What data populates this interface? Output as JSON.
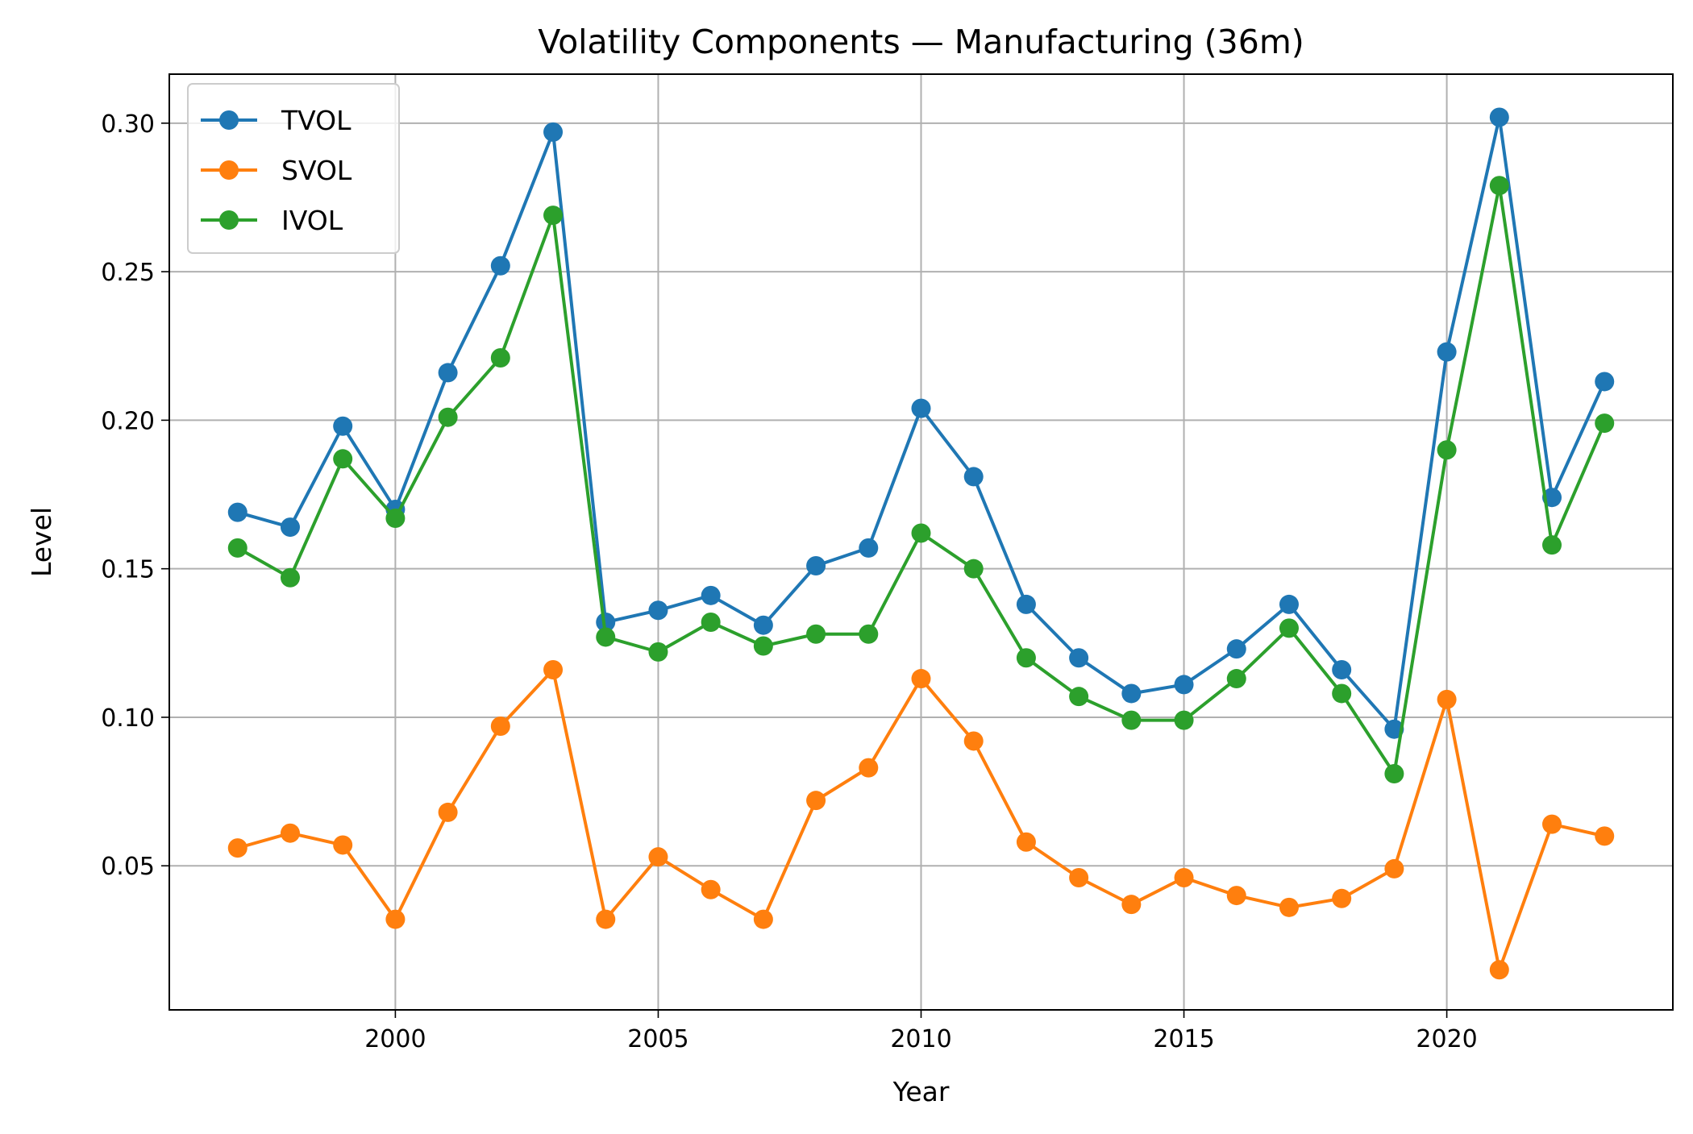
{
  "chart_data": {
    "type": "line",
    "title": "Volatility Components — Manufacturing (36m)",
    "xlabel": "Year",
    "ylabel": "Level",
    "x": [
      1997,
      1998,
      1999,
      2000,
      2001,
      2002,
      2003,
      2004,
      2005,
      2006,
      2007,
      2008,
      2009,
      2010,
      2011,
      2012,
      2013,
      2014,
      2015,
      2016,
      2017,
      2018,
      2019,
      2020,
      2021,
      2022,
      2023
    ],
    "xlim": [
      1995.7,
      2024.3
    ],
    "ylim": [
      0.0015,
      0.3165
    ],
    "xticks": [
      2000,
      2005,
      2010,
      2015,
      2020
    ],
    "xtick_labels": [
      "2000",
      "2005",
      "2010",
      "2015",
      "2020"
    ],
    "yticks": [
      0.05,
      0.1,
      0.15,
      0.2,
      0.25,
      0.3
    ],
    "ytick_labels": [
      "0.05",
      "0.10",
      "0.15",
      "0.20",
      "0.25",
      "0.30"
    ],
    "grid": true,
    "legend_position": "top-left",
    "series": [
      {
        "name": "TVOL",
        "color": "#1f77b4",
        "values": [
          0.169,
          0.164,
          0.198,
          0.17,
          0.216,
          0.252,
          0.297,
          0.132,
          0.136,
          0.141,
          0.131,
          0.151,
          0.157,
          0.204,
          0.181,
          0.138,
          0.12,
          0.108,
          0.111,
          0.123,
          0.138,
          0.116,
          0.096,
          0.223,
          0.302,
          0.174,
          0.213
        ]
      },
      {
        "name": "SVOL",
        "color": "#ff7f0e",
        "values": [
          0.056,
          0.061,
          0.057,
          0.032,
          0.068,
          0.097,
          0.116,
          0.032,
          0.053,
          0.042,
          0.032,
          0.072,
          0.083,
          0.113,
          0.092,
          0.058,
          0.046,
          0.037,
          0.046,
          0.04,
          0.036,
          0.039,
          0.049,
          0.106,
          0.015,
          0.064,
          0.06
        ]
      },
      {
        "name": "IVOL",
        "color": "#2ca02c",
        "values": [
          0.157,
          0.147,
          0.187,
          0.167,
          0.201,
          0.221,
          0.269,
          0.127,
          0.122,
          0.132,
          0.124,
          0.128,
          0.128,
          0.162,
          0.15,
          0.12,
          0.107,
          0.099,
          0.099,
          0.113,
          0.13,
          0.108,
          0.081,
          0.19,
          0.279,
          0.158,
          0.199
        ]
      }
    ]
  }
}
